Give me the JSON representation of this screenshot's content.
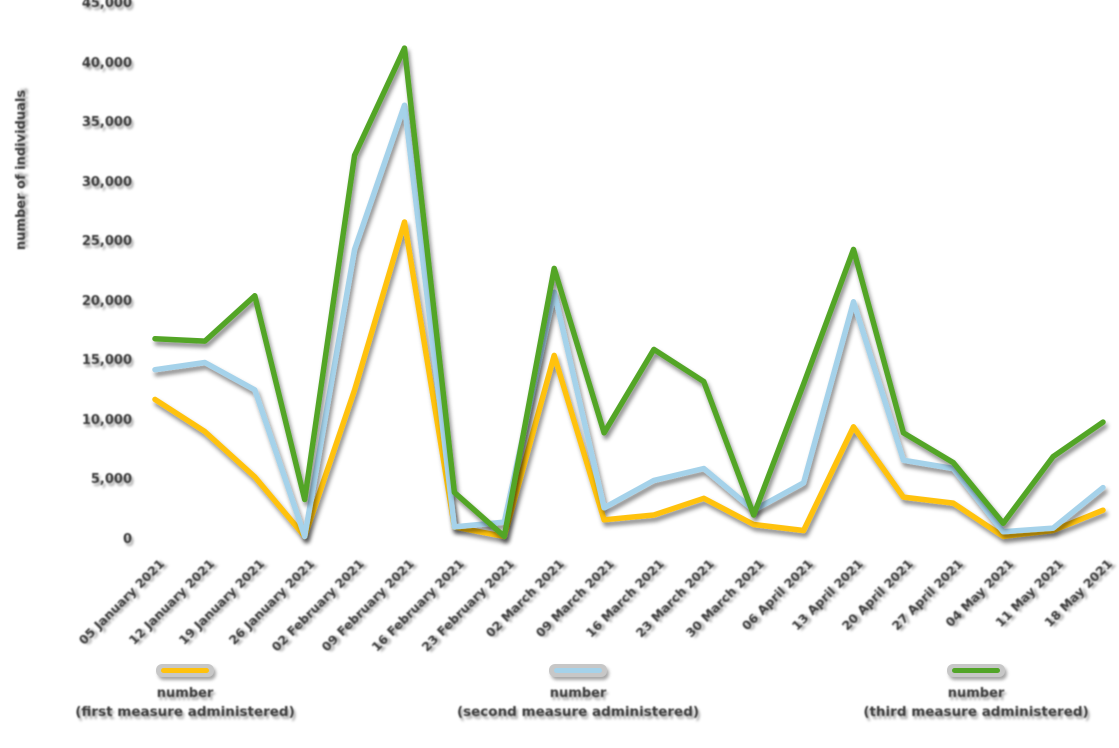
{
  "chart_data": {
    "type": "line",
    "title": "",
    "xlabel": "",
    "ylabel": "number of individuals",
    "ylim": [
      0,
      45000
    ],
    "ytick_step": 5000,
    "ytick_labels": [
      "0",
      "5,000",
      "10,000",
      "15,000",
      "20,000",
      "25,000",
      "30,000",
      "35,000",
      "40,000",
      "45,000"
    ],
    "grid": "horizontal-major",
    "legend_position": "bottom",
    "categories": [
      "05 January 2021",
      "12 January 2021",
      "19 January 2021",
      "26 January 2021",
      "02 February 2021",
      "09 February 2021",
      "16 February 2021",
      "23 February 2021",
      "02 March 2021",
      "09 March 2021",
      "16 March 2021",
      "23 March 2021",
      "30 March 2021",
      "06 April 2021",
      "13 April 2021",
      "20 April 2021",
      "27 April 2021",
      "04 May 2021",
      "11 May 2021",
      "18 May 2021"
    ],
    "series": [
      {
        "name": "number",
        "sub_label": "(first measure administered)",
        "color": "#FFC20E",
        "values": [
          11800,
          9100,
          5300,
          300,
          12600,
          26700,
          1100,
          300,
          15500,
          1700,
          2100,
          3500,
          1300,
          800,
          9500,
          3600,
          3100,
          300,
          800,
          2500
        ]
      },
      {
        "name": "number",
        "sub_label": "(second measure administered)",
        "color": "#A5D2EA",
        "values": [
          14300,
          14900,
          12600,
          300,
          24400,
          36500,
          1100,
          1500,
          20800,
          2700,
          5000,
          6000,
          2500,
          4800,
          20000,
          6700,
          6000,
          700,
          1000,
          4400
        ]
      },
      {
        "name": "number",
        "sub_label": "(third measure administered)",
        "color": "#52A528",
        "values": [
          16900,
          16700,
          20500,
          3400,
          32300,
          41300,
          4000,
          300,
          22800,
          9000,
          16000,
          13300,
          2100,
          13100,
          24400,
          9000,
          6500,
          1400,
          7000,
          9900
        ]
      }
    ]
  },
  "colors": {
    "grid": "#404040",
    "text": "#3B3B3B",
    "legend_pill": "#C7C7C7",
    "background": "#FFFFFF"
  }
}
